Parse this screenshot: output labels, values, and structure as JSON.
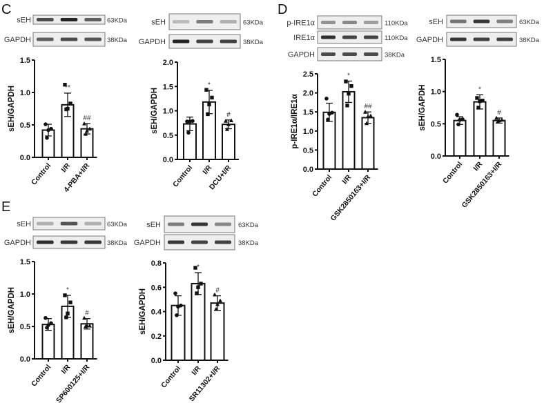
{
  "panel_labels": [
    "C",
    "D",
    "E"
  ],
  "chart_data": [
    {
      "type": "bar",
      "panel": "C",
      "ylabel": "sEH/GAPDH",
      "ylim": [
        0,
        1.5
      ],
      "yticks": [
        "0.0",
        "0.5",
        "1.0",
        "1.5"
      ],
      "categories": [
        "Control",
        "I/R",
        "4-PBA+I/R"
      ],
      "values": [
        0.42,
        0.81,
        0.44
      ],
      "errors": [
        0.09,
        0.18,
        0.08
      ],
      "points": [
        [
          0.51,
          0.44,
          0.42,
          0.3
        ],
        [
          1.12,
          0.83,
          0.75,
          0.74
        ],
        [
          0.52,
          0.44,
          0.41,
          0.36
        ]
      ],
      "significance": [
        "",
        "**",
        "##"
      ],
      "blots": [
        {
          "label": "sEH",
          "size": "63KDa"
        },
        {
          "label": "GAPDH",
          "size": "38KDa"
        }
      ]
    },
    {
      "type": "bar",
      "panel": "C",
      "ylabel": "sEH/GAPDH",
      "ylim": [
        0,
        2.0
      ],
      "yticks": [
        "0.0",
        "0.5",
        "1.0",
        "1.5",
        "2.0"
      ],
      "categories": [
        "Control",
        "I/R",
        "DCU+I/R"
      ],
      "values": [
        0.73,
        1.18,
        0.72
      ],
      "errors": [
        0.14,
        0.24,
        0.09
      ],
      "points": [
        [
          0.78,
          0.79,
          0.78,
          0.55
        ],
        [
          1.43,
          1.27,
          1.13,
          0.93
        ],
        [
          0.79,
          0.8,
          0.72,
          0.62
        ]
      ],
      "significance": [
        "",
        "*",
        "#"
      ],
      "blots": [
        {
          "label": "sEH",
          "size": "63KDa"
        },
        {
          "label": "GAPDH",
          "size": "38KDa"
        }
      ]
    },
    {
      "type": "bar",
      "panel": "D",
      "ylabel": "p-IRE1α/IRE1α",
      "ylim": [
        0,
        2.5
      ],
      "yticks": [
        "0.0",
        "0.5",
        "1.0",
        "1.5",
        "2.0",
        "2.5"
      ],
      "categories": [
        "Control",
        "I/R",
        "GSK2850163+I/R"
      ],
      "values": [
        1.49,
        2.03,
        1.35
      ],
      "errors": [
        0.24,
        0.28,
        0.15
      ],
      "points": [
        [
          1.85,
          1.48,
          1.45,
          1.3
        ],
        [
          2.3,
          2.18,
          1.98,
          1.67
        ],
        [
          1.5,
          1.4,
          1.38,
          1.2
        ]
      ],
      "significance": [
        "",
        "*",
        "##"
      ],
      "blots": [
        {
          "label": "p-IRE1α",
          "size": "110KDa"
        },
        {
          "label": "IRE1α",
          "size": "110KDa"
        },
        {
          "label": "GAPDH",
          "size": "38KDa"
        }
      ]
    },
    {
      "type": "bar",
      "panel": "D",
      "ylabel": "sEH/GAPDH",
      "ylim": [
        0,
        1.5
      ],
      "yticks": [
        "0.0",
        "0.5",
        "1.0",
        "1.5"
      ],
      "categories": [
        "Control",
        "I/R",
        "GSK2850163+I/R"
      ],
      "values": [
        0.55,
        0.84,
        0.55
      ],
      "errors": [
        0.06,
        0.11,
        0.04
      ],
      "points": [
        [
          0.64,
          0.57,
          0.56,
          0.49
        ],
        [
          0.9,
          0.86,
          0.85,
          0.75
        ],
        [
          0.59,
          0.56,
          0.55,
          0.53
        ]
      ],
      "significance": [
        "",
        "*",
        "#"
      ],
      "blots": [
        {
          "label": "sEH",
          "size": "63KDa"
        },
        {
          "label": "GAPDH",
          "size": "38KDa"
        }
      ]
    },
    {
      "type": "bar",
      "panel": "E",
      "ylabel": "sEH/GAPDH",
      "ylim": [
        0,
        1.5
      ],
      "yticks": [
        "0.0",
        "0.5",
        "1.0",
        "1.5"
      ],
      "categories": [
        "Control",
        "I/R",
        "SP600125+I/R"
      ],
      "values": [
        0.53,
        0.81,
        0.54
      ],
      "errors": [
        0.09,
        0.17,
        0.08
      ],
      "points": [
        [
          0.63,
          0.55,
          0.52,
          0.48
        ],
        [
          0.98,
          0.87,
          0.7,
          0.64
        ],
        [
          0.63,
          0.51,
          0.51,
          0.5
        ]
      ],
      "significance": [
        "",
        "*",
        "#"
      ],
      "blots": [
        {
          "label": "sEH",
          "size": "63KDa"
        },
        {
          "label": "GAPDH",
          "size": "38KDa"
        }
      ]
    },
    {
      "type": "bar",
      "panel": "E",
      "ylabel": "sEH/GAPDH",
      "ylim": [
        0,
        0.8
      ],
      "yticks": [
        "0.0",
        "0.2",
        "0.4",
        "0.6",
        "0.8"
      ],
      "categories": [
        "Control",
        "I/R",
        "SR11302+I/R"
      ],
      "values": [
        0.45,
        0.63,
        0.47
      ],
      "errors": [
        0.08,
        0.09,
        0.06
      ],
      "points": [
        [
          0.55,
          0.45,
          0.44,
          0.37
        ],
        [
          0.76,
          0.63,
          0.6,
          0.55
        ],
        [
          0.54,
          0.49,
          0.46,
          0.42
        ]
      ],
      "significance": [
        "",
        "*",
        "#"
      ],
      "blots": [
        {
          "label": "sEH",
          "size": "63KDa"
        },
        {
          "label": "GAPDH",
          "size": "38KDa"
        }
      ]
    }
  ]
}
